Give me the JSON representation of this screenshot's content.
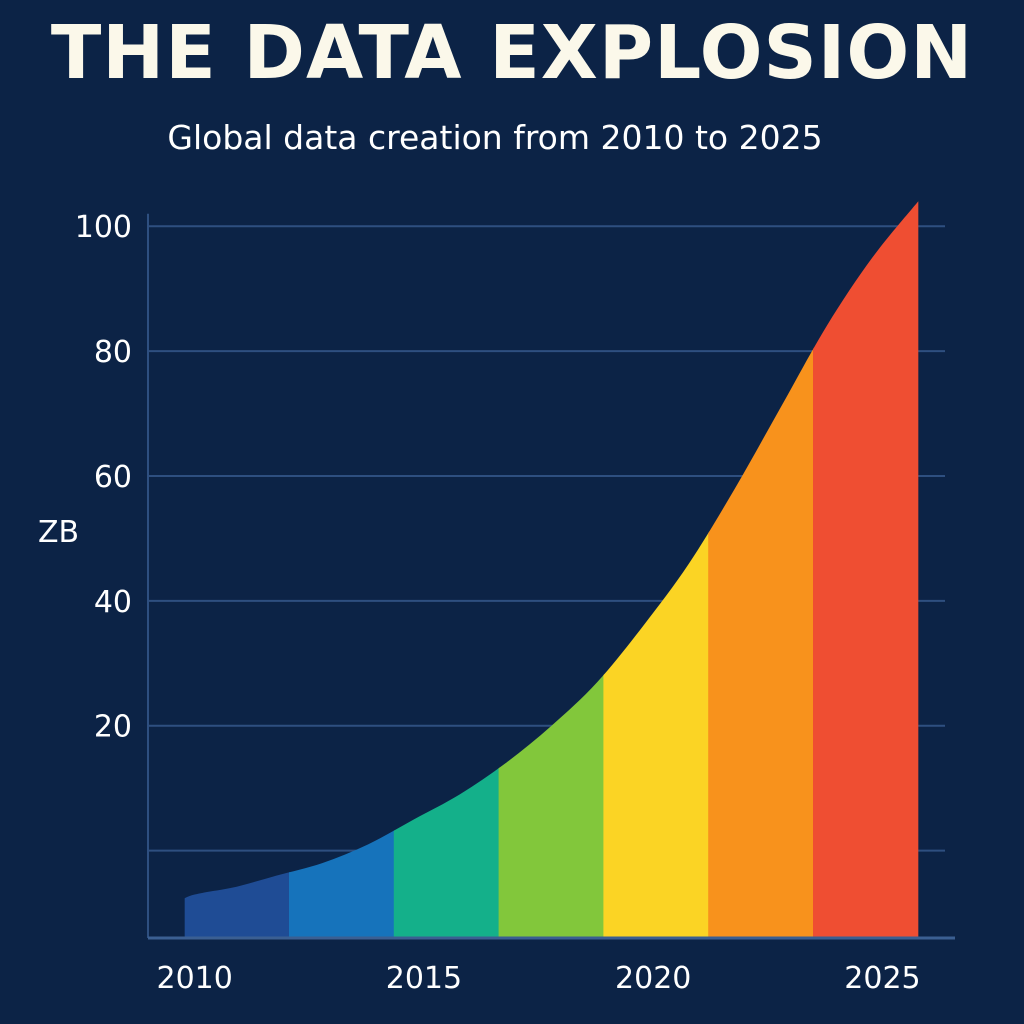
{
  "title": "THE DATA EXPLOSION",
  "subtitle": "Global data creation from 2010 to 2025",
  "chart_data": {
    "type": "area",
    "title": "THE DATA EXPLOSION",
    "subtitle": "Global data creation from 2010 to 2025",
    "ylabel": "ZB",
    "xlabel": "",
    "ylim": [
      -14,
      105
    ],
    "xlim": [
      2009.2,
      2026.8
    ],
    "grid": true,
    "y_ticks": [
      20,
      40,
      60,
      80,
      100
    ],
    "x_ticks": [
      2010,
      2015,
      2020,
      2025
    ],
    "x": [
      2010,
      2011,
      2012,
      2013,
      2014,
      2015,
      2016,
      2017,
      2018,
      2019,
      2020,
      2021,
      2022,
      2023,
      2024,
      2025,
      2026
    ],
    "values": [
      -7,
      -6,
      -4,
      -2,
      1,
      5,
      9,
      14,
      20,
      27,
      36,
      46,
      58,
      71,
      84,
      95,
      104
    ],
    "segment_colors": [
      "#1f4c95",
      "#1673bb",
      "#14b08a",
      "#82c73b",
      "#fbd424",
      "#f8921c",
      "#ef4e32"
    ]
  }
}
